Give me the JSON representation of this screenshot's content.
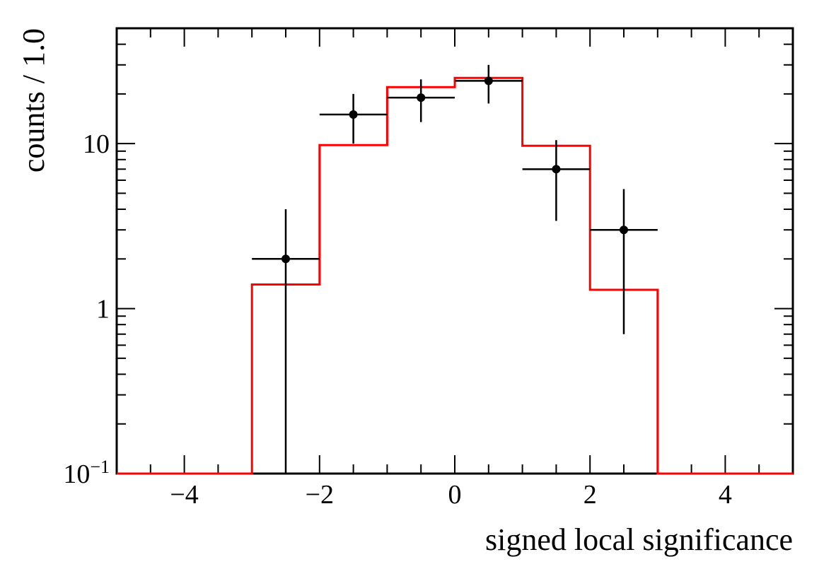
{
  "chart_data": {
    "type": "histogram",
    "title": "",
    "xlabel": "signed local significance",
    "ylabel": "counts / 1.0",
    "x_scale": "linear",
    "y_scale": "log",
    "xlim": [
      -5,
      5
    ],
    "ylim": [
      0.1,
      50
    ],
    "x_ticks": [
      {
        "value": -4,
        "label": "−4"
      },
      {
        "value": -2,
        "label": "−2"
      },
      {
        "value": 0,
        "label": "0"
      },
      {
        "value": 2,
        "label": "2"
      },
      {
        "value": 4,
        "label": "4"
      }
    ],
    "y_ticks": [
      {
        "value": 0.1,
        "base": "10",
        "exp": "−1"
      },
      {
        "value": 1,
        "label": "1"
      },
      {
        "value": 10,
        "label": "10"
      }
    ],
    "grid": false,
    "legend": "none",
    "series": [
      {
        "kind": "step-histogram",
        "color": "#ff0000",
        "bin_edges": [
          -5,
          -4,
          -3,
          -2,
          -1,
          0,
          1,
          2,
          3,
          4,
          5
        ],
        "values": [
          0.1,
          0.1,
          1.4,
          9.8,
          22,
          25,
          9.7,
          1.3,
          0.1,
          0.1
        ]
      },
      {
        "kind": "points-with-errors",
        "color": "#000000",
        "points": [
          {
            "x": -2.5,
            "y": 2,
            "xerr": 0.5,
            "ylow": 0.1,
            "yhigh": 4
          },
          {
            "x": -1.5,
            "y": 15,
            "xerr": 0.5,
            "ylow": 10,
            "yhigh": 20
          },
          {
            "x": -0.5,
            "y": 19,
            "xerr": 0.5,
            "ylow": 13.5,
            "yhigh": 24.5
          },
          {
            "x": 0.5,
            "y": 24,
            "xerr": 0.5,
            "ylow": 17.5,
            "yhigh": 30
          },
          {
            "x": 1.5,
            "y": 7,
            "xerr": 0.5,
            "ylow": 3.4,
            "yhigh": 10.5
          },
          {
            "x": 2.5,
            "y": 3,
            "xerr": 0.5,
            "ylow": 0.7,
            "yhigh": 5.3
          }
        ]
      }
    ]
  }
}
